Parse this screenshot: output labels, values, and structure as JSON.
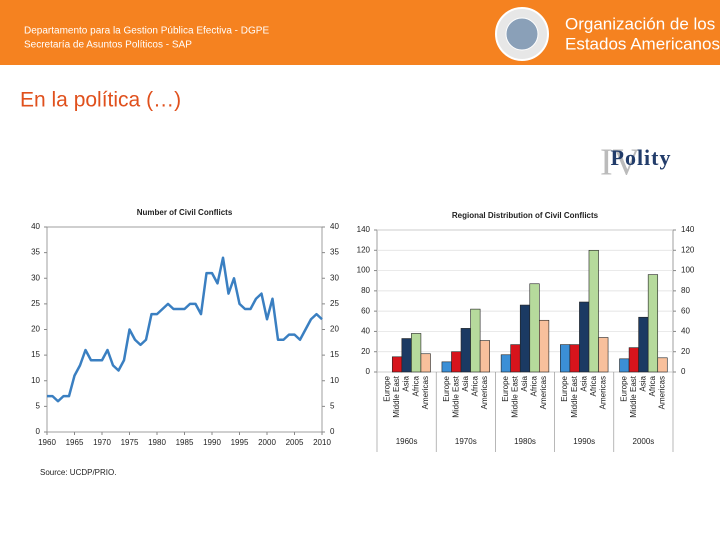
{
  "header": {
    "line1": "Departamento para la Gestion Pública Efectiva - DGPE",
    "line2": "Secretaría de Asuntos Políticos - SAP",
    "org1": "Organización de los",
    "org2": "Estados Americanos"
  },
  "heading": "En la política (…)",
  "logo": {
    "name": "Polity",
    "numeral": "IV"
  },
  "chart_data": [
    {
      "type": "line",
      "title": "Number of Civil Conflicts",
      "note": "Source: UCDP/PRIO.",
      "color": "#3a7fc1",
      "x": [
        1960,
        1961,
        1962,
        1963,
        1964,
        1965,
        1966,
        1967,
        1968,
        1969,
        1970,
        1971,
        1972,
        1973,
        1974,
        1975,
        1976,
        1977,
        1978,
        1979,
        1980,
        1981,
        1982,
        1983,
        1984,
        1985,
        1986,
        1987,
        1988,
        1989,
        1990,
        1991,
        1992,
        1993,
        1994,
        1995,
        1996,
        1997,
        1998,
        1999,
        2000,
        2001,
        2002,
        2003,
        2004,
        2005,
        2006,
        2007,
        2008,
        2009,
        2010
      ],
      "values": [
        7,
        7,
        6,
        7,
        7,
        11,
        13,
        16,
        14,
        14,
        14,
        16,
        13,
        12,
        14,
        20,
        18,
        17,
        18,
        23,
        23,
        24,
        25,
        24,
        24,
        24,
        25,
        25,
        23,
        31,
        31,
        29,
        34,
        27,
        30,
        25,
        24,
        24,
        26,
        27,
        22,
        26,
        18,
        18,
        19,
        19,
        18,
        20,
        22,
        23,
        22
      ],
      "xlim": [
        1960,
        2010
      ],
      "xticks": [
        1960,
        1965,
        1970,
        1975,
        1980,
        1985,
        1990,
        1995,
        2000,
        2005,
        2010
      ],
      "ylim": [
        0,
        40
      ],
      "yticks": [
        0,
        5,
        10,
        15,
        20,
        25,
        30,
        35,
        40
      ],
      "y2lim": [
        0,
        40
      ],
      "y2ticks": [
        0,
        5,
        10,
        15,
        20,
        25,
        30,
        35,
        40
      ],
      "grid": false
    },
    {
      "type": "bar",
      "title": "Regional Distribution of Civil Conflicts",
      "categories": [
        "1960s",
        "1970s",
        "1980s",
        "1990s",
        "2000s"
      ],
      "series": [
        {
          "name": "Europe",
          "color": "#3b8fd6",
          "values": [
            0,
            10,
            17,
            27,
            13
          ]
        },
        {
          "name": "Middle East",
          "color": "#d7141c",
          "values": [
            15,
            20,
            27,
            27,
            24
          ]
        },
        {
          "name": "Asia",
          "color": "#1b3a63",
          "values": [
            33,
            43,
            66,
            69,
            54
          ]
        },
        {
          "name": "Africa",
          "color": "#b6da9c",
          "values": [
            38,
            62,
            87,
            120,
            96
          ]
        },
        {
          "name": "Americas",
          "color": "#f8c09c",
          "values": [
            18,
            31,
            51,
            34,
            14
          ]
        }
      ],
      "ylim": [
        0,
        140
      ],
      "yticks": [
        0,
        20,
        40,
        60,
        80,
        100,
        120,
        140
      ],
      "y2lim": [
        0,
        140
      ],
      "y2ticks": [
        0,
        20,
        40,
        60,
        80,
        100,
        120,
        140
      ],
      "grid": true
    }
  ]
}
